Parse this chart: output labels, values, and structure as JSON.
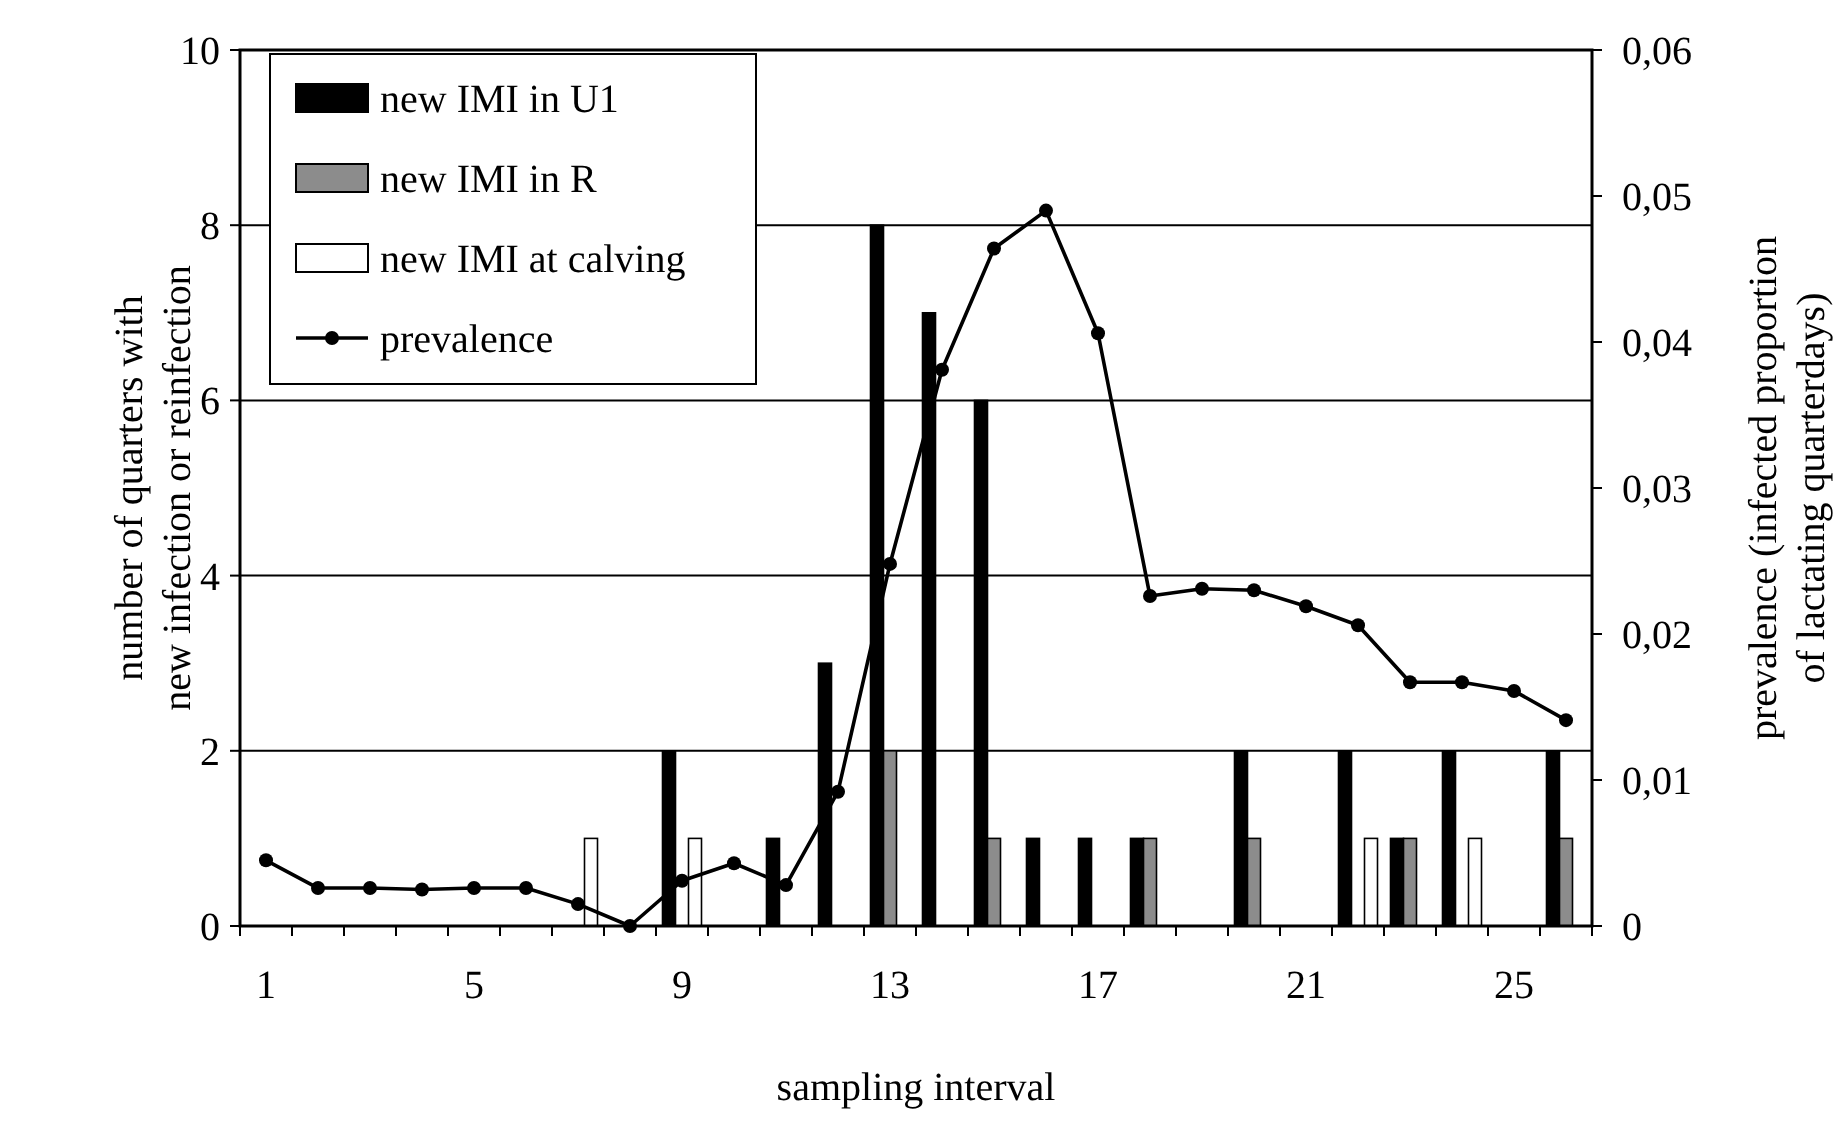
{
  "chart_data": {
    "type": "bar",
    "categories": [
      "1",
      null,
      null,
      null,
      "5",
      null,
      null,
      null,
      "9",
      null,
      null,
      null,
      "13",
      null,
      null,
      null,
      "17",
      null,
      null,
      null,
      "21",
      null,
      null,
      null,
      "25",
      null
    ],
    "series": [
      {
        "name": "new IMI in U1",
        "color": "#000000",
        "values": [
          0,
          0,
          0,
          0,
          0,
          0,
          0,
          0,
          2,
          0,
          1,
          3,
          8,
          7,
          6,
          1,
          1,
          1,
          0,
          2,
          0,
          2,
          1,
          2,
          0,
          2
        ]
      },
      {
        "name": "new IMI in R",
        "color": "#8c8c8c",
        "values": [
          0,
          0,
          0,
          0,
          0,
          0,
          0,
          0,
          0,
          0,
          0,
          0,
          2,
          0,
          1,
          0,
          0,
          1,
          0,
          1,
          0,
          0,
          1,
          0,
          0,
          1
        ]
      },
      {
        "name": "new IMI at calving",
        "color": "#ffffff",
        "values": [
          0,
          0,
          0,
          0,
          0,
          0,
          1,
          0,
          1,
          0,
          0,
          0,
          0,
          0,
          0,
          0,
          0,
          0,
          0,
          0,
          0,
          1,
          0,
          1,
          0,
          0
        ]
      },
      {
        "name": "prevalence",
        "type": "line",
        "axis": "y2",
        "color": "#000000",
        "values": [
          0.0045,
          0.0026,
          0.0026,
          0.0025,
          0.0026,
          0.0026,
          0.0015,
          0,
          0.0031,
          0.0043,
          0.0028,
          0.0092,
          0.0248,
          0.0381,
          0.0464,
          0.049,
          0.0406,
          0.0226,
          0.0231,
          0.023,
          0.0219,
          0.0206,
          0.0167,
          0.0167,
          0.0161,
          0.0141
        ]
      }
    ],
    "xlabel": "sampling interval",
    "ylabel": "number of quarters with\nnew infection or reinfection",
    "y2label": "prevalence (infected proportion\nof lactating quarterdays)",
    "ylim": [
      0,
      10
    ],
    "yticks": [
      0,
      2,
      4,
      6,
      8,
      10
    ],
    "y2lim": [
      0,
      0.06
    ],
    "y2ticks": [
      0,
      {
        "value": 0.01,
        "label": "0,01"
      },
      {
        "value": 0.02,
        "label": "0,02"
      },
      {
        "value": 0.03,
        "label": "0,03"
      },
      {
        "value": 0.04,
        "label": "0,04"
      },
      {
        "value": 0.05,
        "label": "0,05"
      },
      {
        "value": 0.06,
        "label": "0,06"
      }
    ],
    "grid": "y",
    "legend": "top left",
    "marker": "circle",
    "line_style": "solid"
  }
}
